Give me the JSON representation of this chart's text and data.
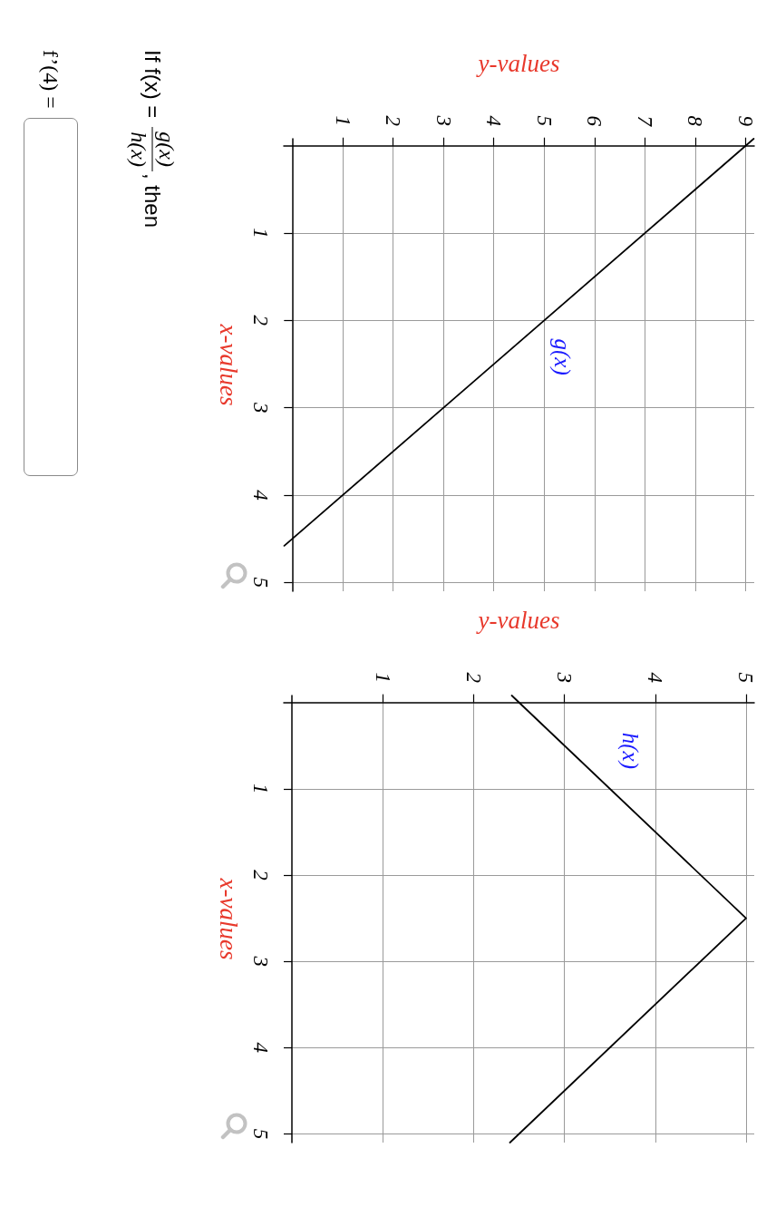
{
  "chart_data": [
    {
      "type": "line",
      "xlabel": "y-values",
      "ylabel": "x-values",
      "series": [
        {
          "name": "g(x)",
          "color": "#000000",
          "x": [
            9.16,
            -0.16
          ],
          "values": [
            -0.08,
            4.58
          ]
        }
      ],
      "xlim": [
        -0.17,
        9.17
      ],
      "ylim": [
        5.1,
        -0.08
      ],
      "xticks": [
        1,
        2,
        3,
        4,
        5,
        6,
        7,
        8,
        9
      ],
      "yticks": [
        1,
        2,
        3,
        4,
        5
      ],
      "grid": true
    },
    {
      "type": "line",
      "xlabel": "y-values",
      "ylabel": "x-values",
      "series": [
        {
          "name": "h(x)",
          "color": "#000000",
          "x": [
            2.42,
            5,
            2.4
          ],
          "values": [
            -0.08,
            2.5,
            5.1
          ]
        }
      ],
      "xlim": [
        -0.09,
        5.09
      ],
      "ylim": [
        5.1,
        -0.08
      ],
      "xticks": [
        1,
        2,
        3,
        4,
        5
      ],
      "yticks": [
        1,
        2,
        3,
        4,
        5
      ],
      "grid": true
    },
    {
      "type": "other",
      "annotations": [
        "If f(x) =",
        "g(x)",
        "h(x)",
        ", then",
        "f’(4) ="
      ]
    }
  ]
}
